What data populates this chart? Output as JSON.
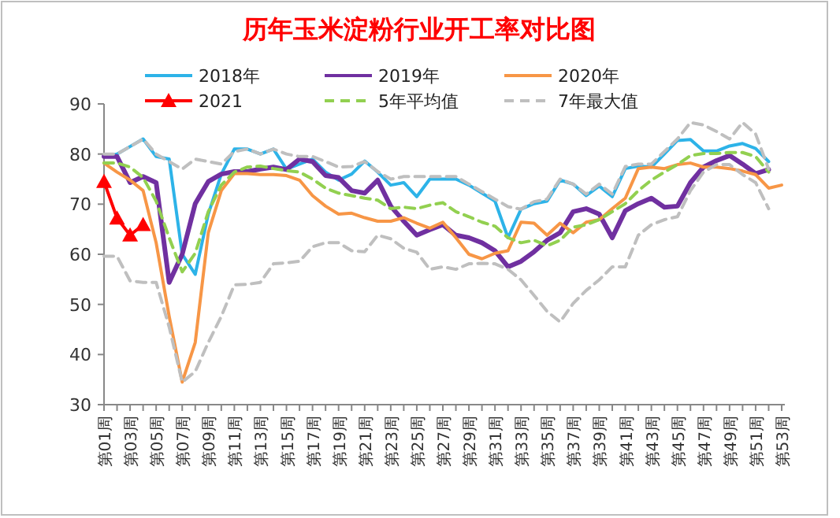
{
  "chart_data": {
    "type": "line",
    "title": "历年玉米淀粉行业开工率对比图",
    "categories": [
      "第01周",
      null,
      "第03周",
      null,
      "第05周",
      null,
      "第07周",
      null,
      "第09周",
      null,
      "第11周",
      null,
      "第13周",
      null,
      "第15周",
      null,
      "第17周",
      null,
      "第19周",
      null,
      "第21周",
      null,
      "第23周",
      null,
      "第25周",
      null,
      "第27周",
      null,
      "第29周",
      null,
      "第31周",
      null,
      "第33周",
      null,
      "第35周",
      null,
      "第37周",
      null,
      "第39周",
      null,
      "第41周",
      null,
      "第43周",
      null,
      "第45周",
      null,
      "第47周",
      null,
      "第49周",
      null,
      "第51周",
      null,
      "第53周"
    ],
    "ylim": [
      30,
      90
    ],
    "yticks": [
      30,
      40,
      50,
      60,
      70,
      80,
      90
    ],
    "grid": false,
    "legend": "top",
    "marker": "none",
    "line_style": "solid",
    "series": [
      {
        "name": "2018年",
        "color": "#2db3e8",
        "values": [
          79.5,
          80,
          81.5,
          83,
          79.5,
          79,
          60,
          56,
          68,
          76,
          81,
          81,
          80,
          81,
          77,
          78,
          79,
          76.4,
          74.8,
          76,
          78.6,
          76.4,
          73.8,
          74.3,
          71.5,
          75,
          75,
          75,
          73.8,
          72.2,
          70.6,
          63.3,
          69,
          70.1,
          70.6,
          74.8,
          74,
          71.7,
          73.6,
          71.5,
          77.1,
          77.6,
          77.4,
          80,
          82.7,
          82.9,
          80.6,
          80.6,
          81.6,
          82.1,
          81.1,
          78.5,
          null
        ]
      },
      {
        "name": "2019年",
        "color": "#7030a0",
        "values": [
          79.5,
          79.5,
          74.3,
          75.5,
          74.3,
          54.4,
          60,
          70.1,
          74.5,
          76,
          76.5,
          76.5,
          77,
          77.4,
          76.9,
          79,
          78.5,
          75.7,
          75.3,
          72.7,
          72.2,
          74.8,
          69.6,
          66.6,
          63.8,
          64.9,
          65.9,
          63.8,
          63.3,
          62.3,
          60.7,
          57.5,
          58.6,
          60.5,
          62.8,
          64.3,
          68.5,
          69.1,
          68,
          63.3,
          68.7,
          70.1,
          71.2,
          69.4,
          69.6,
          74.3,
          77.4,
          78.7,
          79.7,
          78,
          76.1,
          76.9,
          null
        ]
      },
      {
        "name": "2020年",
        "color": "#f79646",
        "values": [
          78.2,
          76.4,
          74.8,
          72.7,
          62.3,
          47.6,
          34.5,
          42.4,
          64.3,
          72.7,
          76.1,
          76.1,
          75.9,
          75.9,
          75.7,
          74.8,
          71.7,
          69.6,
          68,
          68.2,
          67.3,
          66.6,
          66.6,
          67.3,
          66.2,
          65.2,
          66.4,
          63.3,
          60,
          59.1,
          60.2,
          60.7,
          66.4,
          66.2,
          63.8,
          66.2,
          64.3,
          66.4,
          66.9,
          69.1,
          71.2,
          77.1,
          77.4,
          77.1,
          77.9,
          78.2,
          77.4,
          77.4,
          77.1,
          76.6,
          75.9,
          73.2,
          73.8
        ]
      },
      {
        "name": "2021",
        "color": "#ff0000",
        "marker": "triangle",
        "values": [
          74.5,
          67.2,
          63.8,
          65.9,
          null,
          null,
          null,
          null,
          null,
          null,
          null,
          null,
          null,
          null,
          null,
          null,
          null,
          null,
          null,
          null,
          null,
          null,
          null,
          null,
          null,
          null,
          null,
          null,
          null,
          null,
          null,
          null,
          null,
          null,
          null,
          null,
          null,
          null,
          null,
          null,
          null,
          null,
          null,
          null,
          null,
          null,
          null,
          null,
          null,
          null,
          null,
          null,
          null
        ]
      },
      {
        "name": "5年平均值",
        "color": "#92d050",
        "line_style": "dashed",
        "values": [
          78.2,
          78.2,
          77.4,
          75.3,
          70.6,
          63.3,
          56.5,
          60.2,
          68.5,
          73.8,
          76.4,
          77.4,
          77.6,
          77.1,
          76.7,
          76.4,
          75,
          73.2,
          72.2,
          71.7,
          71.2,
          70.8,
          69.1,
          69.4,
          69.1,
          69.8,
          70.3,
          68.5,
          67.5,
          66.4,
          65.6,
          63.3,
          62.3,
          62.8,
          61.7,
          62.8,
          65.4,
          65.9,
          66.9,
          68.5,
          70.1,
          72.7,
          74.8,
          76.4,
          77.9,
          79.7,
          80.1,
          80.1,
          80.3,
          80.3,
          79.5,
          76.4,
          null
        ]
      },
      {
        "name": "7年最大值",
        "color": "#bfbfbf",
        "line_style": "dashed",
        "values": [
          80,
          80,
          81.5,
          83,
          80,
          78.5,
          77,
          79,
          78.5,
          78,
          80.5,
          81,
          80,
          81,
          80,
          79.5,
          79.5,
          78.5,
          77.4,
          77.5,
          78.5,
          76.5,
          75,
          75.5,
          75.5,
          75.5,
          75.5,
          75.5,
          74,
          72.5,
          71,
          69.5,
          69,
          70.5,
          71,
          75,
          74,
          72,
          74,
          72,
          77.5,
          78,
          78,
          80.5,
          83,
          86.3,
          85.8,
          84.5,
          83,
          86.3,
          84,
          77,
          null
        ]
      },
      {
        "color": "#bfbfbf",
        "line_style": "dashed",
        "values": [
          59.6,
          59.6,
          54.7,
          54.4,
          54.4,
          45.5,
          34.5,
          36.6,
          42.4,
          47.6,
          53.9,
          54,
          54.4,
          58.1,
          58.3,
          58.6,
          61.5,
          62.3,
          62.3,
          60.7,
          60.5,
          63.8,
          63.1,
          61.2,
          60.4,
          57,
          57.5,
          57,
          58.1,
          58.2,
          58.1,
          57,
          54.9,
          51.8,
          48.6,
          46.5,
          50.2,
          52.8,
          54.9,
          57.5,
          57.5,
          63.8,
          65.9,
          66.9,
          67.5,
          72.7,
          76.4,
          77.9,
          77.9,
          75.9,
          74.3,
          69.1,
          null
        ]
      }
    ]
  }
}
